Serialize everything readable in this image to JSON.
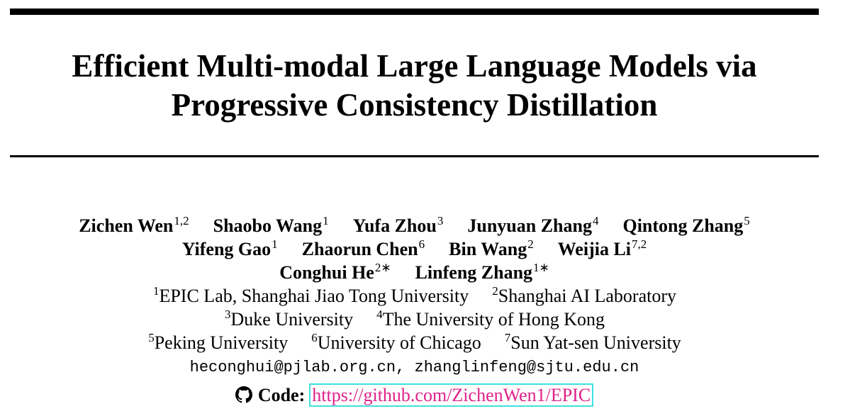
{
  "title": [
    "Efficient Multi-modal Large Language Models via",
    "Progressive Consistency Distillation"
  ],
  "authors": [
    [
      {
        "name": "Zichen Wen",
        "sup": "1,2"
      },
      {
        "name": "Shaobo Wang",
        "sup": "1"
      },
      {
        "name": "Yufa Zhou",
        "sup": "3"
      },
      {
        "name": "Junyuan Zhang",
        "sup": "4"
      },
      {
        "name": "Qintong Zhang",
        "sup": "5"
      }
    ],
    [
      {
        "name": "Yifeng Gao",
        "sup": "1"
      },
      {
        "name": "Zhaorun Chen",
        "sup": "6"
      },
      {
        "name": "Bin Wang",
        "sup": "2"
      },
      {
        "name": "Weijia Li",
        "sup": "7,2"
      }
    ],
    [
      {
        "name": "Conghui He",
        "sup": "2∗"
      },
      {
        "name": "Linfeng Zhang",
        "sup": "1∗"
      }
    ]
  ],
  "affiliations": [
    [
      {
        "sup": "1",
        "name": "EPIC Lab, Shanghai Jiao Tong University"
      },
      {
        "sup": "2",
        "name": "Shanghai AI Laboratory"
      }
    ],
    [
      {
        "sup": "3",
        "name": "Duke University"
      },
      {
        "sup": "4",
        "name": "The University of Hong Kong"
      }
    ],
    [
      {
        "sup": "5",
        "name": "Peking University"
      },
      {
        "sup": "6",
        "name": "University of Chicago"
      },
      {
        "sup": "7",
        "name": "Sun Yat-sen University"
      }
    ]
  ],
  "emails": "heconghui@pjlab.org.cn, zhanglinfeng@sjtu.edu.cn",
  "code": {
    "label": "Code:",
    "url": "https://github.com/ZichenWen1/EPIC"
  }
}
